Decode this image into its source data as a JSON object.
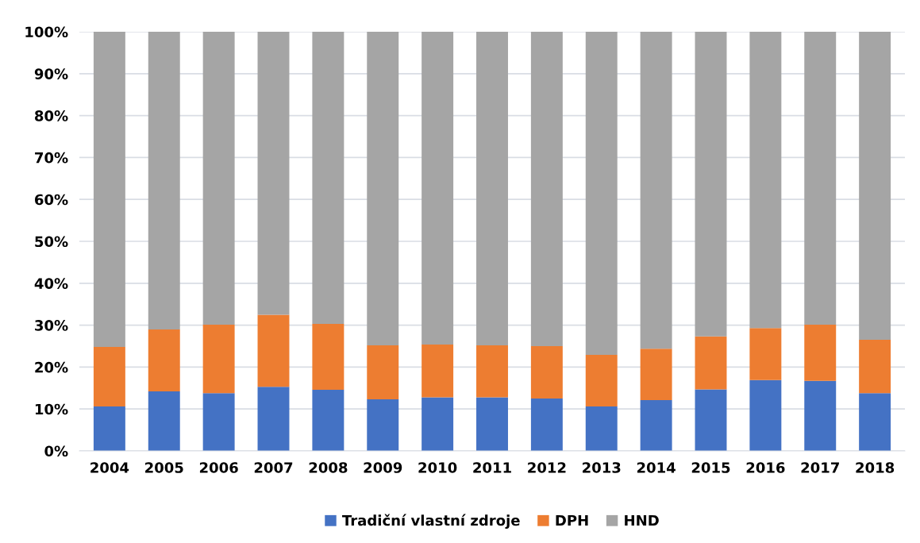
{
  "chart_data": {
    "type": "bar",
    "stacked": true,
    "categories": [
      "2004",
      "2005",
      "2006",
      "2007",
      "2008",
      "2009",
      "2010",
      "2011",
      "2012",
      "2013",
      "2014",
      "2015",
      "2016",
      "2017",
      "2018"
    ],
    "series": [
      {
        "name": "Tradiční vlastní zdroje",
        "color": "#4472c4",
        "values": [
          10.6,
          14.2,
          13.8,
          15.3,
          14.6,
          12.3,
          12.8,
          12.8,
          12.5,
          10.6,
          12.1,
          14.7,
          16.9,
          16.7,
          13.8
        ]
      },
      {
        "name": "DPH",
        "color": "#ed7d31",
        "values": [
          14.2,
          14.8,
          16.3,
          17.2,
          15.7,
          12.9,
          12.6,
          12.4,
          12.5,
          12.3,
          12.3,
          12.6,
          12.4,
          13.4,
          12.7
        ]
      },
      {
        "name": "HND",
        "color": "#a5a5a5",
        "values": [
          75.2,
          71.0,
          69.9,
          67.5,
          69.7,
          74.8,
          74.6,
          74.8,
          75.0,
          77.1,
          75.6,
          72.7,
          70.7,
          69.9,
          73.5
        ]
      }
    ],
    "ylim": [
      0,
      100
    ],
    "yticks": [
      {
        "value": 0,
        "label": "0%"
      },
      {
        "value": 10,
        "label": "10%"
      },
      {
        "value": 20,
        "label": "20%"
      },
      {
        "value": 30,
        "label": "30%"
      },
      {
        "value": 40,
        "label": "40%"
      },
      {
        "value": 50,
        "label": "50%"
      },
      {
        "value": 60,
        "label": "60%"
      },
      {
        "value": 70,
        "label": "70%"
      },
      {
        "value": 80,
        "label": "80%"
      },
      {
        "value": 90,
        "label": "90%"
      },
      {
        "value": 100,
        "label": "100%"
      }
    ],
    "grid": "y",
    "legend": "bottom"
  }
}
